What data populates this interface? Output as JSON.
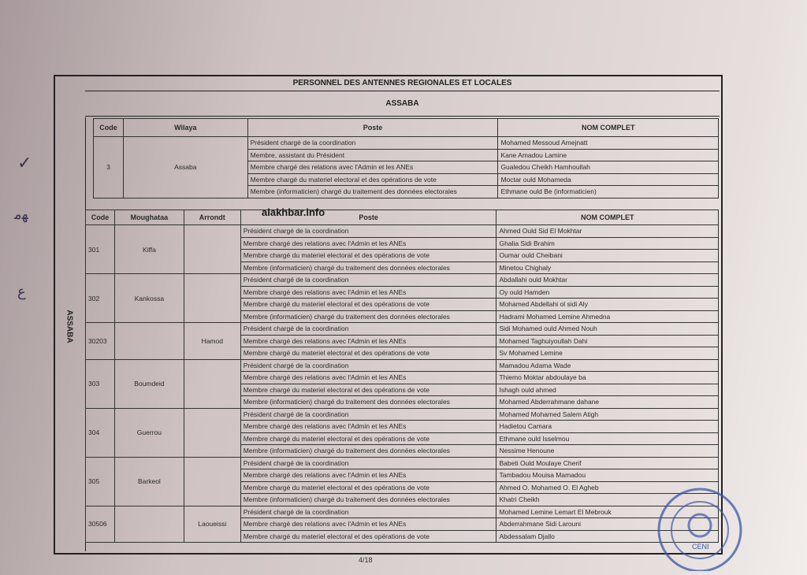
{
  "document": {
    "title": "PERSONNEL DES ANTENNES REGIONALES ET LOCALES",
    "region": "ASSABA",
    "side_label": "ASSABA",
    "page": "4/18",
    "watermark": "alakhbar.info",
    "stamp_text": "CENI"
  },
  "table1": {
    "headers": [
      "Code",
      "Wilaya",
      "Poste",
      "NOM COMPLET"
    ],
    "code": "3",
    "wilaya": "Assaba",
    "rows": [
      {
        "poste": "Président chargé de la coordination",
        "nom": "Mohamed Messoud Amejnatt"
      },
      {
        "poste": "Membre, assistant du Président",
        "nom": "Kane Amadou Lamine"
      },
      {
        "poste": "Membre chargé des relations avec l'Admin et les ANEs",
        "nom": "Gualedou Cheikh Hamhoullah"
      },
      {
        "poste": "Membre chargé du materiel electoral et des opérations de vote",
        "nom": "Moctar ould Mohameda"
      },
      {
        "poste": "Membre (informaticien) chargé du traitement des données electorales",
        "nom": "Ethmane ould Be (informaticien)"
      }
    ]
  },
  "table2": {
    "headers": [
      "Code",
      "Moughataa",
      "Arrondt",
      "Poste",
      "NOM COMPLET"
    ],
    "groups": [
      {
        "code": "301",
        "moughataa": "Kiffa",
        "arrondt": "",
        "rows": [
          {
            "poste": "Président chargé de la coordination",
            "nom": "Ahmed Ould Sid El Mokhtar"
          },
          {
            "poste": "Membre chargé des relations avec l'Admin et les ANEs",
            "nom": "Ghalia Sidi Brahim"
          },
          {
            "poste": "Membre chargé du materiel electoral et des opérations de vote",
            "nom": "Oumar ould Cheibani"
          },
          {
            "poste": "Membre (informaticien) chargé du traitement des données electorales",
            "nom": "Minetou Chighaly"
          }
        ]
      },
      {
        "code": "302",
        "moughataa": "Kankossa",
        "arrondt": "",
        "rows": [
          {
            "poste": "Président chargé de la coordination",
            "nom": "Abdallahi ould Mokhtar"
          },
          {
            "poste": "Membre chargé des relations avec l'Admin et les ANEs",
            "nom": "Oy ould Hamden"
          },
          {
            "poste": "Membre chargé du materiel electoral et des opérations de vote",
            "nom": "Mohamed Abdellahi ol sidi Aly"
          },
          {
            "poste": "Membre (informaticien) chargé du traitement des données electorales",
            "nom": "Hadrami Mohamed Lemine Ahmedna"
          }
        ]
      },
      {
        "code": "30203",
        "moughataa": "",
        "arrondt": "Hamod",
        "rows": [
          {
            "poste": "Président chargé de la coordination",
            "nom": "Sidi Mohamed ould Ahmed Nouh"
          },
          {
            "poste": "Membre chargé des relations avec l'Admin et les ANEs",
            "nom": "Mohamed Taghuiyoullah Dahi"
          },
          {
            "poste": "Membre chargé du materiel electoral et des opérations de vote",
            "nom": "Sv Mohamed Lemine"
          }
        ]
      },
      {
        "code": "303",
        "moughataa": "Boumdeid",
        "arrondt": "",
        "rows": [
          {
            "poste": "Président chargé de la coordination",
            "nom": "Mamadou Adama Wade"
          },
          {
            "poste": "Membre chargé des relations avec l'Admin et les ANEs",
            "nom": "Thiemo Moktar abdoulaye ba"
          },
          {
            "poste": "Membre chargé du materiel electoral et des opérations de vote",
            "nom": "Ishagh ould ahmed"
          },
          {
            "poste": "Membre (informaticien) chargé du traitement des données electorales",
            "nom": "Mohamed Abderrahmane dahane"
          }
        ]
      },
      {
        "code": "304",
        "moughataa": "Guerrou",
        "arrondt": "",
        "rows": [
          {
            "poste": "Président chargé de la coordination",
            "nom": "Mohamed Mohamed Salem Atigh"
          },
          {
            "poste": "Membre chargé des relations avec l'Admin et les ANEs",
            "nom": "Hadietou Camara"
          },
          {
            "poste": "Membre chargé du materiel electoral et des opérations de vote",
            "nom": "Ethmane ould Isselmou"
          },
          {
            "poste": "Membre (informaticien) chargé du traitement des données electorales",
            "nom": "Nessime Henoune"
          }
        ]
      },
      {
        "code": "305",
        "moughataa": "Barkeol",
        "arrondt": "",
        "rows": [
          {
            "poste": "Président chargé de la coordination",
            "nom": "Babeti Ould Moulaye Cherif"
          },
          {
            "poste": "Membre chargé des relations avec l'Admin et les ANEs",
            "nom": "Tambadou Mouisa Mamadou"
          },
          {
            "poste": "Membre chargé du materiel electoral et des opérations de vote",
            "nom": "Ahmed O. Mohamed O. El Agheb"
          },
          {
            "poste": "Membre (informaticien) chargé du traitement des données electorales",
            "nom": "Khatri Cheikh"
          }
        ]
      },
      {
        "code": "30506",
        "moughataa": "",
        "arrondt": "Laoueissi",
        "rows": [
          {
            "poste": "Président chargé de la coordination",
            "nom": "Mohamed Lemine Lemart El Mebrouk"
          },
          {
            "poste": "Membre chargé des relations avec l'Admin et les ANEs",
            "nom": "Abderrahmane Sidi Larouni"
          },
          {
            "poste": "Membre chargé du materiel electoral et des opérations de vote",
            "nom": "Abdessalam Djallo"
          }
        ]
      }
    ]
  }
}
